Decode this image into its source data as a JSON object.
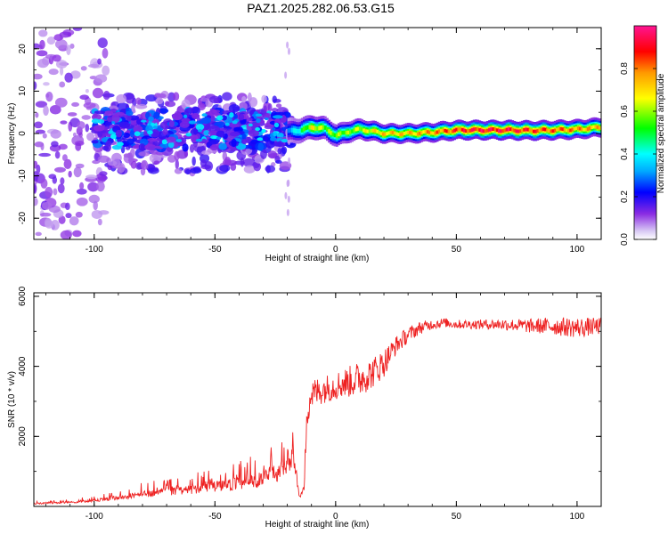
{
  "title": "PAZ1.2025.282.06.53.G15",
  "chart_data": [
    {
      "type": "heatmap",
      "name": "spectrogram",
      "xlabel": "Height of straight line (km)",
      "ylabel": "Frequency (Hz)",
      "xlim": [
        -125,
        110
      ],
      "ylim": [
        -25,
        25
      ],
      "xticks": [
        -100,
        -50,
        0,
        50,
        100
      ],
      "xtick_labels": [
        "-100",
        "-50",
        "0",
        "50",
        "100"
      ],
      "yticks": [
        -20,
        -10,
        0,
        10,
        20
      ],
      "ytick_labels": [
        "-20",
        "-10",
        "0",
        "10",
        "20"
      ],
      "colorbar": {
        "label": "Normalized spectral amplitude",
        "range": [
          0,
          1
        ],
        "ticks": [
          0.0,
          0.2,
          0.4,
          0.6,
          0.8
        ],
        "tick_labels": [
          "0.0",
          "0.2",
          "0.4",
          "0.6",
          "0.8"
        ],
        "colors": [
          "#ffffff",
          "#c8b4f0",
          "#8a2be2",
          "#0000ff",
          "#00ffff",
          "#00ff00",
          "#ffff00",
          "#ff8000",
          "#ff0000",
          "#ff1493"
        ]
      },
      "track": {
        "x": [
          -20,
          -15,
          -10,
          -5,
          0,
          5,
          10,
          15,
          20,
          30,
          40,
          50,
          60,
          70,
          80,
          90,
          100,
          110
        ],
        "freq": [
          0.5,
          0.8,
          1.5,
          1.2,
          -0.5,
          0.5,
          1.0,
          0.5,
          0.0,
          0.0,
          0.3,
          0.8,
          0.8,
          0.8,
          0.7,
          0.8,
          1.0,
          1.5
        ],
        "amplitude": [
          0.3,
          0.45,
          0.7,
          0.6,
          0.6,
          0.6,
          0.65,
          0.7,
          0.75,
          0.75,
          0.8,
          0.9,
          0.95,
          0.95,
          0.9,
          0.85,
          0.8,
          0.75
        ]
      }
    },
    {
      "type": "line",
      "name": "snr",
      "xlabel": "Height of straight line (km)",
      "ylabel": "SNR (10 * v/v)",
      "xlim": [
        -125,
        110
      ],
      "ylim": [
        0,
        6100
      ],
      "xticks": [
        -100,
        -50,
        0,
        50,
        100
      ],
      "xtick_labels": [
        "-100",
        "-50",
        "0",
        "50",
        "100"
      ],
      "yticks": [
        2000,
        4000,
        6000
      ],
      "ytick_labels": [
        "2000",
        "4000",
        "6000"
      ],
      "color": "#ee2222",
      "series": [
        {
          "name": "SNR",
          "x": [
            -125,
            -110,
            -100,
            -90,
            -80,
            -70,
            -60,
            -50,
            -40,
            -30,
            -25,
            -20,
            -17,
            -15,
            -13,
            -12,
            -10,
            -5,
            0,
            5,
            10,
            15,
            20,
            25,
            30,
            35,
            40,
            45,
            50,
            60,
            70,
            80,
            90,
            100,
            110
          ],
          "mean": [
            60,
            90,
            130,
            190,
            250,
            300,
            350,
            400,
            450,
            550,
            650,
            900,
            1000,
            200,
            400,
            2800,
            3200,
            3350,
            3450,
            3550,
            3650,
            3800,
            4100,
            4600,
            4900,
            5100,
            5200,
            5250,
            5200,
            5200,
            5200,
            5150,
            5150,
            5100,
            5150
          ],
          "noise": [
            60,
            80,
            120,
            200,
            300,
            350,
            400,
            500,
            600,
            700,
            900,
            1000,
            1000,
            150,
            300,
            700,
            500,
            450,
            450,
            500,
            550,
            500,
            450,
            300,
            250,
            200,
            160,
            150,
            140,
            150,
            180,
            220,
            280,
            320,
            260
          ]
        }
      ]
    }
  ]
}
